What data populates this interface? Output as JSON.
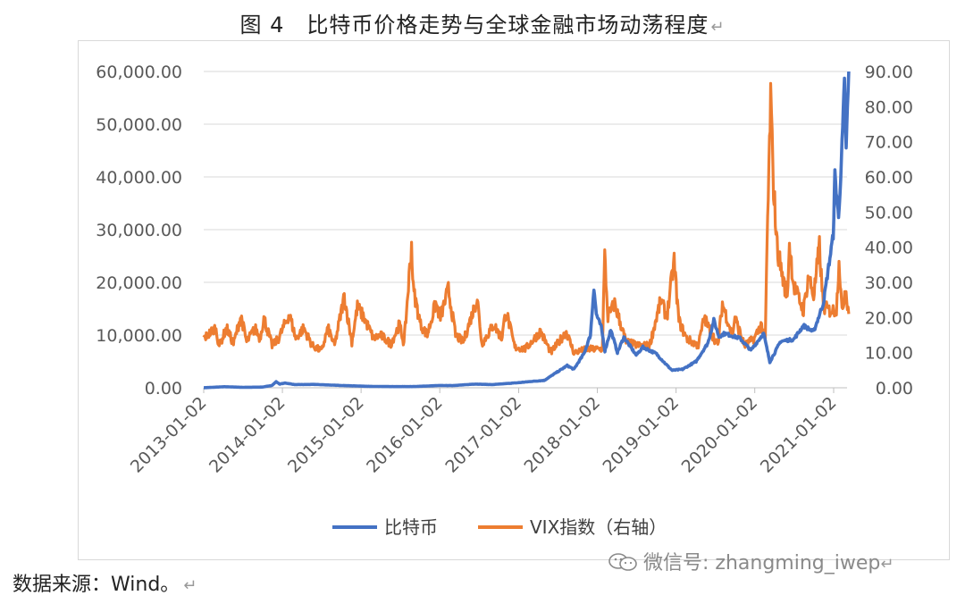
{
  "figure_title": "图 4　比特币价格走势与全球金融市场动荡程度",
  "return_mark": "↵",
  "source_text": "数据来源：Wind。",
  "watermark_text": "微信号: zhangming_iwep",
  "colors": {
    "btc": "#4472C4",
    "vix": "#ED7D31",
    "grid": "#d9d9d9",
    "text": "#595959"
  },
  "chart_data": {
    "type": "line",
    "title": "",
    "x_ticks": [
      "2013-01-02",
      "2014-01-02",
      "2015-01-02",
      "2016-01-02",
      "2017-01-02",
      "2018-01-02",
      "2019-01-02",
      "2020-01-02",
      "2021-01-02"
    ],
    "xlim": [
      "2013-01-02",
      "2021-03-15"
    ],
    "y_left": {
      "ticks": [
        "0.00",
        "10,000.00",
        "20,000.00",
        "30,000.00",
        "40,000.00",
        "50,000.00",
        "60,000.00"
      ],
      "ylim": [
        0,
        60000
      ]
    },
    "y_right": {
      "ticks": [
        "0.00",
        "10.00",
        "20.00",
        "30.00",
        "40.00",
        "50.00",
        "60.00",
        "70.00",
        "80.00",
        "90.00"
      ],
      "ylim": [
        0,
        90
      ]
    },
    "legend_position": "bottom",
    "series": [
      {
        "name": "比特币",
        "axis": "left",
        "color": "#4472C4",
        "points": [
          [
            "2013-01-02",
            13
          ],
          [
            "2013-04-10",
            200
          ],
          [
            "2013-07-01",
            90
          ],
          [
            "2013-10-01",
            130
          ],
          [
            "2013-11-15",
            450
          ],
          [
            "2013-12-04",
            1150
          ],
          [
            "2013-12-20",
            700
          ],
          [
            "2014-01-15",
            900
          ],
          [
            "2014-03-01",
            600
          ],
          [
            "2014-06-01",
            640
          ],
          [
            "2014-09-01",
            480
          ],
          [
            "2014-12-31",
            320
          ],
          [
            "2015-03-01",
            250
          ],
          [
            "2015-06-01",
            225
          ],
          [
            "2015-09-01",
            230
          ],
          [
            "2015-12-31",
            430
          ],
          [
            "2016-03-01",
            420
          ],
          [
            "2016-06-15",
            700
          ],
          [
            "2016-09-01",
            600
          ],
          [
            "2016-12-31",
            960
          ],
          [
            "2017-03-01",
            1200
          ],
          [
            "2017-05-01",
            1400
          ],
          [
            "2017-06-15",
            2600
          ],
          [
            "2017-08-15",
            4200
          ],
          [
            "2017-09-15",
            3500
          ],
          [
            "2017-11-01",
            6500
          ],
          [
            "2017-12-01",
            10000
          ],
          [
            "2017-12-17",
            19000
          ],
          [
            "2017-12-28",
            14000
          ],
          [
            "2018-01-20",
            11500
          ],
          [
            "2018-02-06",
            7000
          ],
          [
            "2018-03-05",
            11000
          ],
          [
            "2018-04-05",
            6700
          ],
          [
            "2018-05-05",
            9600
          ],
          [
            "2018-07-01",
            6200
          ],
          [
            "2018-08-01",
            7700
          ],
          [
            "2018-10-01",
            6500
          ],
          [
            "2018-11-20",
            4300
          ],
          [
            "2018-12-15",
            3300
          ],
          [
            "2019-02-01",
            3500
          ],
          [
            "2019-04-05",
            5000
          ],
          [
            "2019-05-30",
            8500
          ],
          [
            "2019-06-26",
            12800
          ],
          [
            "2019-07-20",
            9700
          ],
          [
            "2019-08-15",
            10300
          ],
          [
            "2019-10-25",
            9400
          ],
          [
            "2019-12-15",
            7100
          ],
          [
            "2020-02-12",
            10300
          ],
          [
            "2020-03-12",
            4900
          ],
          [
            "2020-05-01",
            8800
          ],
          [
            "2020-07-01",
            9200
          ],
          [
            "2020-08-15",
            11800
          ],
          [
            "2020-10-01",
            10600
          ],
          [
            "2020-11-15",
            16000
          ],
          [
            "2020-12-31",
            29000
          ],
          [
            "2021-01-08",
            40500
          ],
          [
            "2021-01-25",
            32000
          ],
          [
            "2021-02-10",
            46000
          ],
          [
            "2021-02-21",
            57500
          ],
          [
            "2021-03-01",
            45000
          ],
          [
            "2021-03-13",
            60000
          ]
        ]
      },
      {
        "name": "VIX指数（右轴）",
        "axis": "right",
        "color": "#ED7D31",
        "points": [
          [
            "2013-01-02",
            14
          ],
          [
            "2013-02-25",
            17
          ],
          [
            "2013-03-15",
            12
          ],
          [
            "2013-04-18",
            17
          ],
          [
            "2013-05-20",
            12.5
          ],
          [
            "2013-06-24",
            20.5
          ],
          [
            "2013-07-20",
            13
          ],
          [
            "2013-08-28",
            17
          ],
          [
            "2013-09-20",
            14
          ],
          [
            "2013-10-08",
            20
          ],
          [
            "2013-11-15",
            12
          ],
          [
            "2013-12-15",
            14
          ],
          [
            "2014-02-03",
            21
          ],
          [
            "2014-03-05",
            14
          ],
          [
            "2014-04-11",
            17
          ],
          [
            "2014-05-20",
            12
          ],
          [
            "2014-07-03",
            10.5
          ],
          [
            "2014-08-01",
            17
          ],
          [
            "2014-09-01",
            12
          ],
          [
            "2014-10-16",
            26
          ],
          [
            "2014-11-20",
            13
          ],
          [
            "2014-12-16",
            23
          ],
          [
            "2015-01-15",
            20
          ],
          [
            "2015-03-01",
            14
          ],
          [
            "2015-04-01",
            15
          ],
          [
            "2015-05-20",
            12.5
          ],
          [
            "2015-06-29",
            18
          ],
          [
            "2015-07-20",
            12.5
          ],
          [
            "2015-08-24",
            40.7
          ],
          [
            "2015-09-01",
            28
          ],
          [
            "2015-10-05",
            18
          ],
          [
            "2015-11-05",
            15
          ],
          [
            "2015-12-14",
            24
          ],
          [
            "2016-01-05",
            20
          ],
          [
            "2016-02-11",
            28
          ],
          [
            "2016-03-15",
            15
          ],
          [
            "2016-04-20",
            13
          ],
          [
            "2016-06-24",
            25.5
          ],
          [
            "2016-07-15",
            12.5
          ],
          [
            "2016-09-09",
            18
          ],
          [
            "2016-10-15",
            14
          ],
          [
            "2016-11-04",
            22
          ],
          [
            "2016-12-15",
            11.5
          ],
          [
            "2017-02-01",
            11
          ],
          [
            "2017-04-13",
            16
          ],
          [
            "2017-06-01",
            10
          ],
          [
            "2017-08-11",
            16
          ],
          [
            "2017-09-15",
            10
          ],
          [
            "2017-11-15",
            11
          ],
          [
            "2017-12-29",
            11
          ],
          [
            "2018-01-25",
            11
          ],
          [
            "2018-02-05",
            37.3
          ],
          [
            "2018-02-20",
            20
          ],
          [
            "2018-03-23",
            24
          ],
          [
            "2018-04-06",
            21
          ],
          [
            "2018-05-15",
            13
          ],
          [
            "2018-07-15",
            12
          ],
          [
            "2018-09-01",
            12
          ],
          [
            "2018-10-24",
            25
          ],
          [
            "2018-11-20",
            20
          ],
          [
            "2018-12-24",
            36
          ],
          [
            "2019-01-15",
            19
          ],
          [
            "2019-02-20",
            14
          ],
          [
            "2019-04-15",
            12
          ],
          [
            "2019-05-13",
            20
          ],
          [
            "2019-06-03",
            17
          ],
          [
            "2019-07-15",
            12
          ],
          [
            "2019-08-05",
            24
          ],
          [
            "2019-09-20",
            15
          ],
          [
            "2019-10-02",
            20
          ],
          [
            "2019-11-15",
            12
          ],
          [
            "2019-12-31",
            14
          ],
          [
            "2020-01-31",
            18
          ],
          [
            "2020-02-20",
            14
          ],
          [
            "2020-02-28",
            40
          ],
          [
            "2020-03-16",
            82.7
          ],
          [
            "2020-03-26",
            61
          ],
          [
            "2020-04-15",
            40
          ],
          [
            "2020-05-15",
            30
          ],
          [
            "2020-06-01",
            26
          ],
          [
            "2020-06-11",
            41
          ],
          [
            "2020-07-01",
            29
          ],
          [
            "2020-08-15",
            22
          ],
          [
            "2020-09-08",
            32
          ],
          [
            "2020-10-01",
            26
          ],
          [
            "2020-10-28",
            40
          ],
          [
            "2020-11-15",
            23
          ],
          [
            "2020-12-15",
            22
          ],
          [
            "2021-01-15",
            22
          ],
          [
            "2021-01-27",
            37
          ],
          [
            "2021-02-10",
            21
          ],
          [
            "2021-02-25",
            29
          ],
          [
            "2021-03-04",
            26
          ],
          [
            "2021-03-13",
            21
          ]
        ]
      }
    ]
  }
}
